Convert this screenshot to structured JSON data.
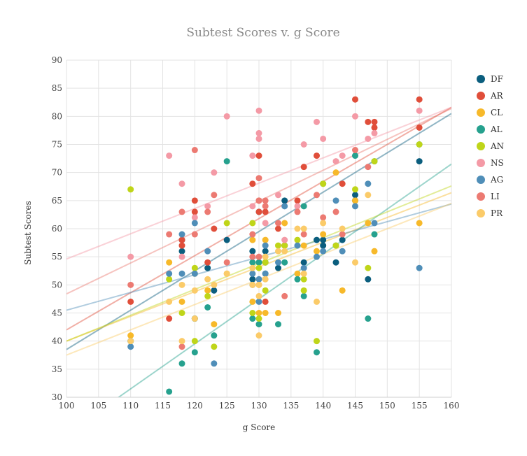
{
  "chart_data": {
    "type": "scatter",
    "title": "Subtest Scores v. g Score",
    "xlabel": "g Score",
    "ylabel": "Subtest Scores",
    "xlim": [
      100,
      160
    ],
    "ylim": [
      30,
      90
    ],
    "xticks": [
      100,
      105,
      110,
      115,
      120,
      125,
      130,
      135,
      140,
      145,
      150,
      155,
      160
    ],
    "yticks": [
      30,
      35,
      40,
      45,
      50,
      55,
      60,
      65,
      70,
      75,
      80,
      85,
      90
    ],
    "grid": true,
    "legend_position": "right",
    "series": [
      {
        "name": "DF",
        "color": "#0b5e7e",
        "x": [
          110,
          118,
          118,
          120,
          122,
          123,
          125,
          129,
          129,
          130,
          130,
          131,
          131,
          133,
          134,
          134,
          137,
          139,
          140,
          140,
          142,
          143,
          145,
          145,
          147,
          155
        ],
        "y": [
          40,
          58,
          56,
          44,
          53,
          49,
          58,
          56,
          51,
          54,
          63,
          56,
          54,
          53,
          65,
          57,
          54,
          58,
          58,
          57,
          54,
          58,
          66,
          65,
          51,
          72
        ],
        "trend": [
          0.7,
          -31.5
        ]
      },
      {
        "name": "AR",
        "color": "#e04e3a",
        "x": [
          110,
          116,
          118,
          118,
          120,
          120,
          122,
          123,
          129,
          130,
          130,
          130,
          131,
          131,
          133,
          134,
          136,
          137,
          139,
          143,
          145,
          147,
          148,
          148,
          155,
          155
        ],
        "y": [
          47,
          44,
          57,
          58,
          65,
          63,
          54,
          60,
          68,
          73,
          63,
          65,
          63,
          47,
          60,
          57,
          65,
          71,
          73,
          68,
          83,
          79,
          79,
          78,
          83,
          78
        ],
        "trend": [
          0.66,
          -24.0
        ]
      },
      {
        "name": "CL",
        "color": "#f7b92a",
        "x": [
          110,
          116,
          118,
          120,
          122,
          123,
          125,
          129,
          129,
          130,
          130,
          130,
          131,
          131,
          133,
          134,
          136,
          137,
          139,
          140,
          142,
          143,
          145,
          147,
          148,
          155
        ],
        "y": [
          41,
          54,
          47,
          52,
          49,
          43,
          52,
          58,
          47,
          54,
          50,
          45,
          58,
          45,
          45,
          61,
          52,
          57,
          56,
          59,
          70,
          49,
          65,
          61,
          56,
          61
        ],
        "trend": [
          0.44,
          -4.0
        ]
      },
      {
        "name": "AL",
        "color": "#26a18e",
        "x": [
          110,
          116,
          118,
          120,
          120,
          122,
          123,
          125,
          129,
          129,
          130,
          130,
          131,
          133,
          134,
          136,
          137,
          137,
          139,
          140,
          142,
          145,
          147,
          148,
          148,
          155
        ],
        "y": [
          40,
          31,
          36,
          38,
          44,
          46,
          41,
          72,
          44,
          54,
          43,
          54,
          52,
          43,
          54,
          51,
          48,
          64,
          38,
          68,
          57,
          73,
          44,
          59,
          72,
          75
        ],
        "trend": [
          0.8,
          -56.5
        ]
      },
      {
        "name": "AN",
        "color": "#bfd519",
        "x": [
          110,
          116,
          118,
          120,
          120,
          122,
          123,
          125,
          129,
          129,
          130,
          130,
          131,
          131,
          133,
          134,
          136,
          137,
          137,
          139,
          140,
          142,
          145,
          147,
          148,
          155
        ],
        "y": [
          67,
          51,
          45,
          40,
          53,
          48,
          39,
          61,
          61,
          45,
          53,
          44,
          49,
          54,
          57,
          57,
          58,
          49,
          51,
          40,
          68,
          57,
          67,
          53,
          72,
          75
        ],
        "trend": [
          0.46,
          -6.0
        ]
      },
      {
        "name": "NS",
        "color": "#f49aa6",
        "x": [
          110,
          116,
          118,
          118,
          120,
          122,
          123,
          125,
          129,
          129,
          130,
          130,
          130,
          131,
          133,
          134,
          136,
          137,
          139,
          140,
          142,
          143,
          145,
          147,
          148,
          155
        ],
        "y": [
          55,
          73,
          68,
          55,
          62,
          64,
          70,
          80,
          73,
          64,
          81,
          77,
          76,
          61,
          66,
          58,
          64,
          75,
          79,
          76,
          72,
          73,
          80,
          76,
          77,
          81
        ],
        "trend": [
          0.45,
          9.6
        ]
      },
      {
        "name": "AG",
        "color": "#4f8eb8",
        "x": [
          110,
          116,
          118,
          118,
          120,
          120,
          122,
          123,
          129,
          129,
          130,
          130,
          131,
          131,
          133,
          134,
          136,
          137,
          139,
          140,
          142,
          143,
          145,
          147,
          148,
          155
        ],
        "y": [
          39,
          52,
          59,
          52,
          61,
          52,
          56,
          36,
          52,
          50,
          51,
          47,
          57,
          52,
          54,
          64,
          57,
          53,
          55,
          56,
          65,
          56,
          64,
          68,
          61,
          53
        ],
        "trend": [
          0.315,
          14.0
        ]
      },
      {
        "name": "LI",
        "color": "#ec7a72",
        "x": [
          110,
          116,
          118,
          118,
          120,
          120,
          122,
          123,
          125,
          129,
          129,
          130,
          130,
          130,
          131,
          131,
          133,
          134,
          136,
          137,
          139,
          140,
          142,
          143,
          145,
          147
        ],
        "y": [
          50,
          59,
          63,
          39,
          59,
          74,
          63,
          66,
          54,
          59,
          55,
          65,
          69,
          55,
          65,
          64,
          61,
          48,
          63,
          59,
          66,
          62,
          63,
          59,
          74,
          71
        ],
        "trend": [
          0.55,
          -6.6
        ]
      },
      {
        "name": "PR",
        "color": "#fbcb69",
        "x": [
          110,
          116,
          118,
          118,
          120,
          120,
          122,
          123,
          125,
          129,
          129,
          130,
          130,
          130,
          131,
          131,
          133,
          134,
          136,
          137,
          137,
          139,
          140,
          143,
          145,
          147
        ],
        "y": [
          40,
          47,
          40,
          50,
          49,
          44,
          51,
          50,
          52,
          53,
          50,
          41,
          50,
          48,
          51,
          55,
          56,
          56,
          60,
          52,
          60,
          47,
          61,
          60,
          54,
          66
        ],
        "trend": [
          0.45,
          -7.5
        ]
      }
    ]
  }
}
